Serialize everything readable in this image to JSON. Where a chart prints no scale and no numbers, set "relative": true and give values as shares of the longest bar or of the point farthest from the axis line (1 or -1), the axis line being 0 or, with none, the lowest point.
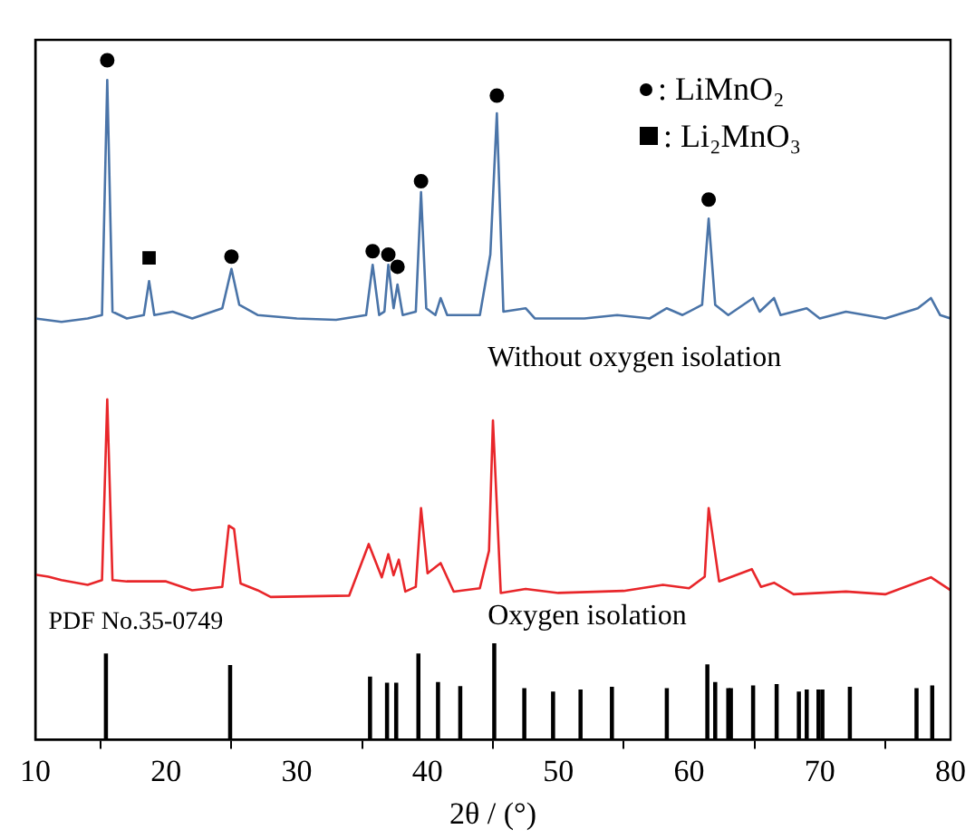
{
  "chart_data": {
    "type": "line",
    "xlabel": "2θ / (°)",
    "xlim": [
      10,
      80
    ],
    "xticks": [
      10,
      20,
      30,
      40,
      50,
      60,
      70,
      80
    ],
    "relative": true,
    "grid": false,
    "legend": "top right",
    "tick_labels": "x",
    "series": [
      {
        "name": "Without oxygen isolation",
        "color": "#4a74a8",
        "marker": "none",
        "x": [
          10,
          12,
          14,
          15.1,
          15.5,
          15.9,
          17,
          18.3,
          18.7,
          19.1,
          20.5,
          22,
          24.3,
          25.0,
          25.6,
          27,
          30,
          33,
          35.3,
          35.8,
          36.3,
          36.7,
          37.0,
          37.4,
          37.7,
          38.1,
          39.1,
          39.5,
          39.9,
          40.6,
          41.0,
          41.5,
          44,
          44.8,
          45.3,
          45.8,
          47.5,
          48.2,
          52,
          54.5,
          57,
          58.3,
          59.5,
          61.0,
          61.5,
          62.0,
          63,
          64.9,
          65.4,
          66.5,
          67,
          69,
          70,
          72,
          75,
          77.5,
          78.5,
          79.2,
          80
        ],
        "values": [
          0.62,
          0.615,
          0.62,
          0.625,
          0.971,
          0.63,
          0.62,
          0.625,
          0.675,
          0.625,
          0.63,
          0.62,
          0.635,
          0.693,
          0.64,
          0.625,
          0.62,
          0.618,
          0.625,
          0.699,
          0.625,
          0.63,
          0.699,
          0.635,
          0.67,
          0.625,
          0.63,
          0.806,
          0.635,
          0.625,
          0.65,
          0.625,
          0.625,
          0.714,
          0.922,
          0.63,
          0.635,
          0.62,
          0.62,
          0.625,
          0.62,
          0.635,
          0.625,
          0.64,
          0.767,
          0.64,
          0.625,
          0.65,
          0.63,
          0.65,
          0.625,
          0.635,
          0.62,
          0.63,
          0.62,
          0.635,
          0.65,
          0.625,
          0.62
        ]
      },
      {
        "name": "Oxygen isolation",
        "color": "#e8262a",
        "marker": "none",
        "x": [
          10,
          11,
          12,
          14,
          15.1,
          15.5,
          15.9,
          17,
          20,
          22,
          24.3,
          24.8,
          25.2,
          25.7,
          27,
          28,
          34,
          35.5,
          36.5,
          37.0,
          37.4,
          37.8,
          38.3,
          39.1,
          39.5,
          40.0,
          41.0,
          42,
          44,
          44.7,
          45.0,
          45.6,
          47.5,
          50,
          55,
          58,
          60,
          61.2,
          61.5,
          62.3,
          64.8,
          65.5,
          66.5,
          68,
          72,
          75,
          78.5,
          80
        ],
        "values": [
          0.243,
          0.24,
          0.235,
          0.228,
          0.235,
          0.501,
          0.235,
          0.233,
          0.233,
          0.22,
          0.225,
          0.315,
          0.31,
          0.23,
          0.22,
          0.21,
          0.212,
          0.288,
          0.239,
          0.273,
          0.242,
          0.265,
          0.218,
          0.225,
          0.341,
          0.245,
          0.26,
          0.218,
          0.223,
          0.278,
          0.47,
          0.216,
          0.222,
          0.216,
          0.219,
          0.228,
          0.223,
          0.24,
          0.341,
          0.233,
          0.251,
          0.225,
          0.231,
          0.214,
          0.218,
          0.214,
          0.239,
          0.22
        ]
      },
      {
        "name": "PDF No.35-0749",
        "color": "#000000",
        "type": "bar",
        "x": [
          15.4,
          24.9,
          35.6,
          36.9,
          37.6,
          39.3,
          40.8,
          42.5,
          45.1,
          47.4,
          49.6,
          51.7,
          54.1,
          58.3,
          61.4,
          62.0,
          63.0,
          63.2,
          64.9,
          66.7,
          68.4,
          69.0,
          69.9,
          70.2,
          72.3,
          77.4,
          78.6
        ],
        "values": [
          0.126,
          0.109,
          0.092,
          0.083,
          0.083,
          0.126,
          0.084,
          0.078,
          0.141,
          0.075,
          0.07,
          0.073,
          0.077,
          0.075,
          0.11,
          0.084,
          0.075,
          0.075,
          0.079,
          0.081,
          0.07,
          0.073,
          0.073,
          0.073,
          0.077,
          0.075,
          0.079
        ]
      },
      {
        "name": ": LiMnO₂",
        "color": "#000000",
        "type": "scatter",
        "marker": "circle",
        "x": [
          15.5,
          25.0,
          35.8,
          37.0,
          37.7,
          39.5,
          45.3,
          61.5
        ],
        "values": [
          1.0,
          0.711,
          0.719,
          0.714,
          0.696,
          0.822,
          0.948,
          0.795
        ]
      },
      {
        "name": ": Li₂MnO₃",
        "color": "#000000",
        "type": "scatter",
        "marker": "square",
        "x": [
          18.7
        ],
        "values": [
          0.709
        ]
      }
    ]
  }
}
